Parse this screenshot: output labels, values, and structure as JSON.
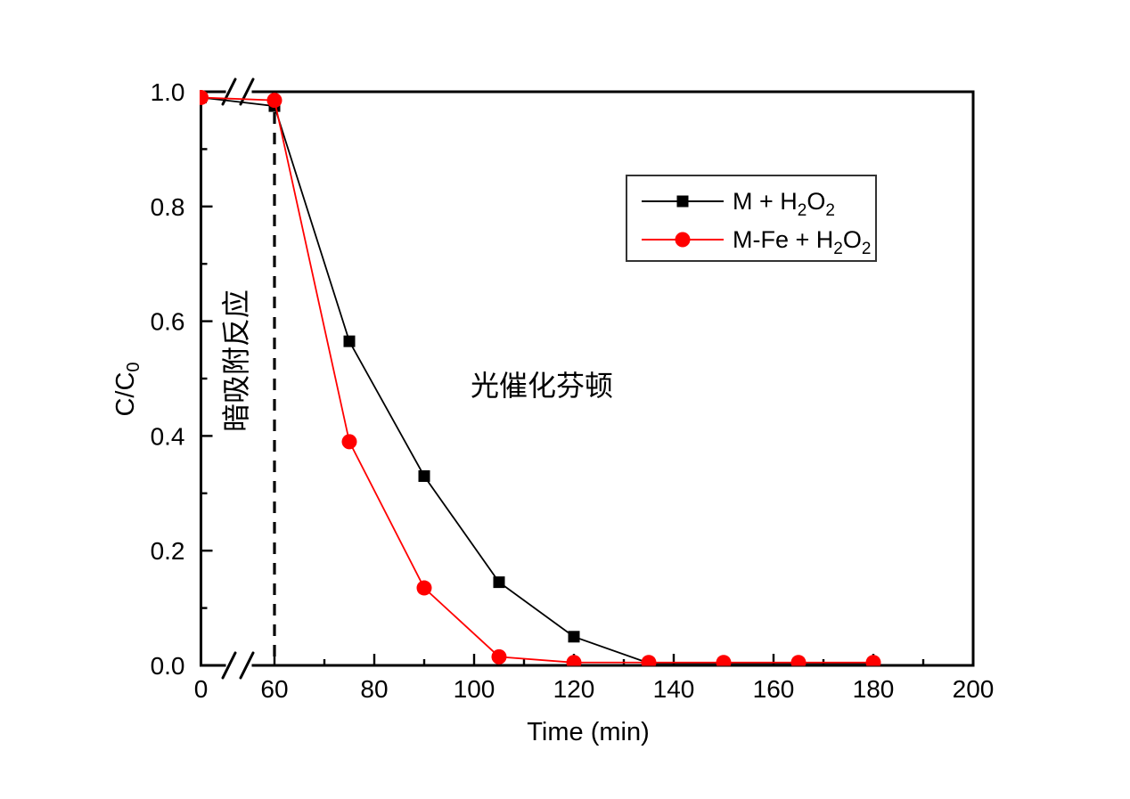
{
  "figure": {
    "background_color": "#ffffff",
    "axis_color": "#000000",
    "x_axis_title": "Time (min)",
    "y_axis_title": "C/C₀",
    "x_major_ticks": [
      {
        "t": 0,
        "label": "0"
      },
      {
        "t": 60,
        "label": "60"
      },
      {
        "t": 80,
        "label": "80"
      },
      {
        "t": 100,
        "label": "100"
      },
      {
        "t": 120,
        "label": "120"
      },
      {
        "t": 140,
        "label": "140"
      },
      {
        "t": 160,
        "label": "160"
      },
      {
        "t": 180,
        "label": "180"
      },
      {
        "t": 200,
        "label": "200"
      }
    ],
    "x_minor_ticks": [
      70,
      90,
      110,
      130,
      150,
      170,
      190
    ],
    "y_major_ticks": [
      {
        "v": 0.0,
        "label": "0.0"
      },
      {
        "v": 0.2,
        "label": "0.2"
      },
      {
        "v": 0.4,
        "label": "0.4"
      },
      {
        "v": 0.6,
        "label": "0.6"
      },
      {
        "v": 0.8,
        "label": "0.8"
      },
      {
        "v": 1.0,
        "label": "1.0"
      }
    ],
    "y_minor_ticks": [
      0.1,
      0.3,
      0.5,
      0.7,
      0.9
    ]
  },
  "legend": {
    "border_color": "#333333",
    "entries": [
      {
        "label": "M + H₂O₂",
        "color": "#000000",
        "marker": "square"
      },
      {
        "label": "M-Fe + H₂O₂",
        "color": "#ff0000",
        "marker": "circle"
      }
    ]
  },
  "annotations": [
    {
      "id": "dark-adsorption-phase",
      "text": "暗吸附反应",
      "rotation": -90
    },
    {
      "id": "photocatalytic-fenton-phase",
      "text": "光催化芬顿",
      "rotation": 0
    }
  ],
  "divider": {
    "t": 60,
    "style": "dashed",
    "color": "#000000"
  },
  "chart_data": {
    "type": "line",
    "title": "",
    "xlabel": "Time (min)",
    "ylabel": "C/C₀",
    "x_axis_break": {
      "between": [
        0,
        60
      ],
      "marks_on": [
        "bottom-axis",
        "top-axis"
      ]
    },
    "xlim": [
      0,
      200
    ],
    "ylim": [
      0.0,
      1.0
    ],
    "grid": false,
    "legend_position": "upper-right-inside",
    "x": [
      0,
      60,
      75,
      90,
      105,
      120,
      135,
      150,
      165,
      180
    ],
    "series": [
      {
        "name": "M + H₂O₂",
        "color": "#000000",
        "marker": "square",
        "values": [
          0.99,
          0.975,
          0.565,
          0.33,
          0.145,
          0.05,
          0.004,
          0.004,
          0.004,
          0.004
        ]
      },
      {
        "name": "M-Fe + H₂O₂",
        "color": "#ff0000",
        "marker": "circle",
        "values": [
          0.99,
          0.985,
          0.39,
          0.135,
          0.015,
          0.005,
          0.005,
          0.005,
          0.005,
          0.005
        ]
      }
    ],
    "vline": {
      "x": 60,
      "style": "dashed"
    }
  }
}
